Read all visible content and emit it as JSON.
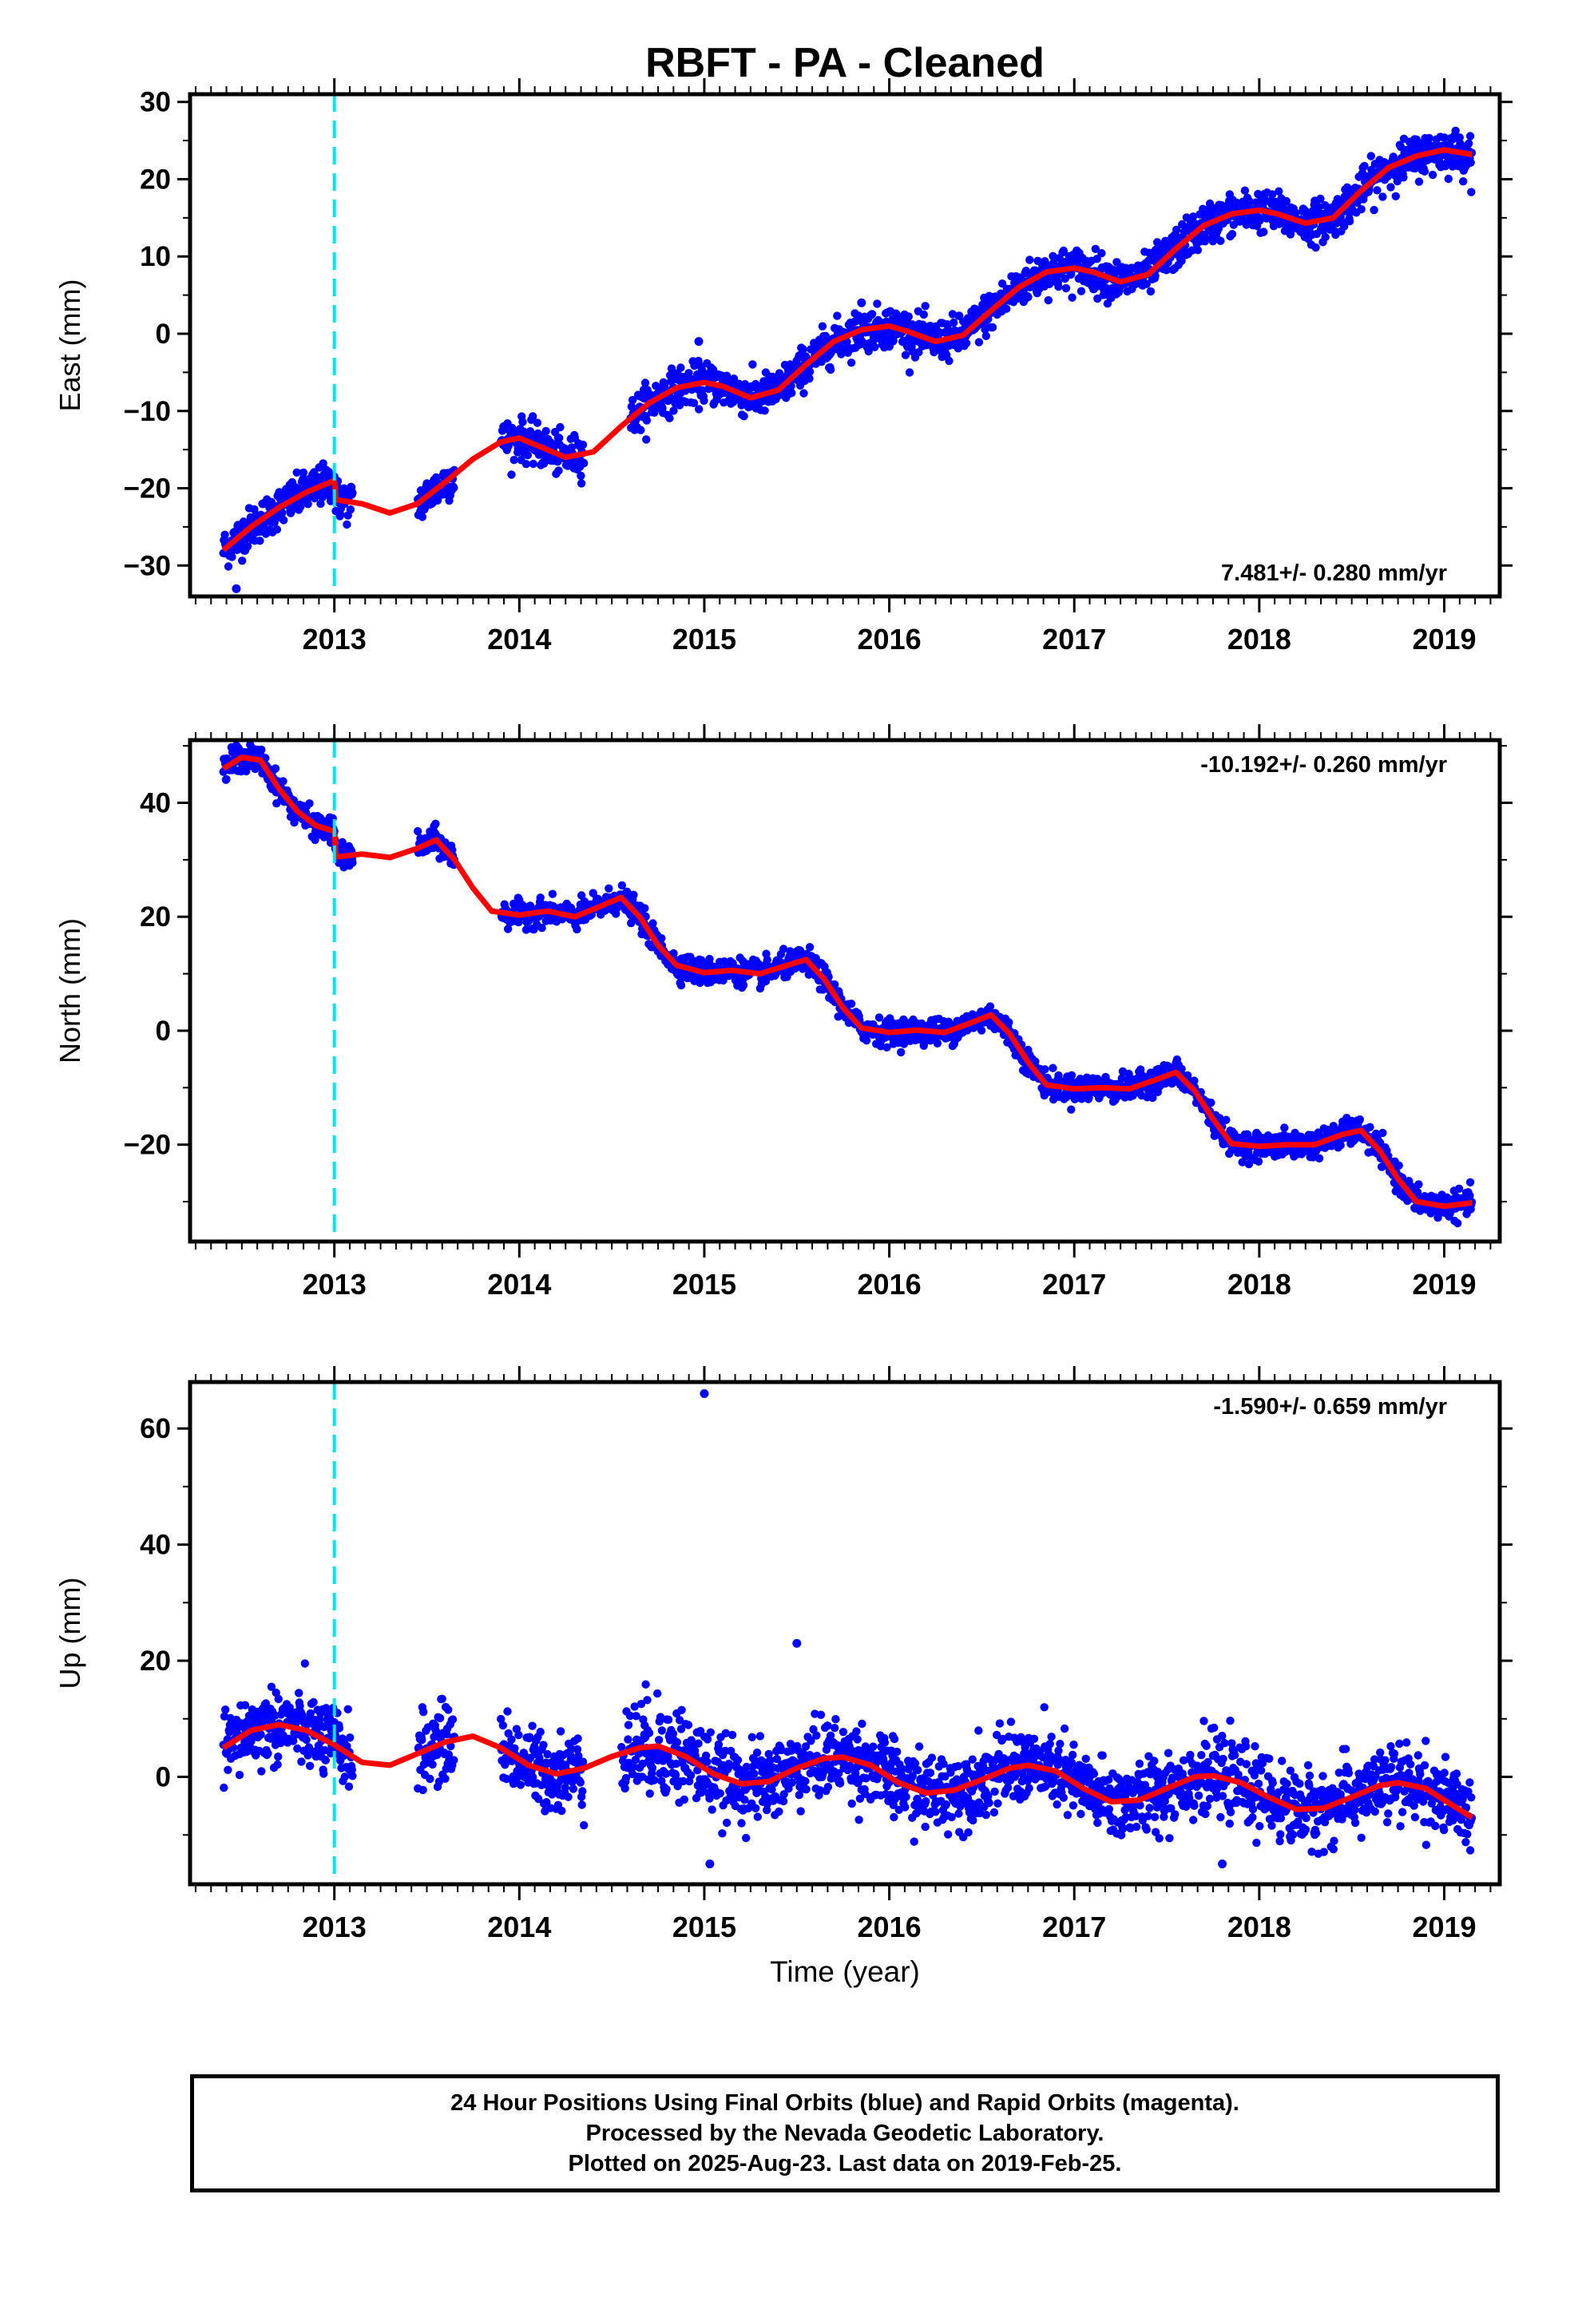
{
  "title": "RBFT  - PA - Cleaned",
  "colors": {
    "points": "#0000ff",
    "model_fit": "#ff0000",
    "event_line": "#00e5ee",
    "frame": "#000000"
  },
  "footer": {
    "line1": "24 Hour Positions Using Final Orbits (blue) and Rapid Orbits (magenta).",
    "line2": "Processed by the Nevada Geodetic Laboratory.",
    "line3": "Plotted on 2025-Aug-23. Last data on 2019-Feb-25."
  },
  "chart_data": [
    {
      "type": "scatter",
      "ylabel": "East (mm)",
      "xlabel": "",
      "xlim": [
        2012.22,
        2019.3
      ],
      "ylim": [
        -34,
        31
      ],
      "xticks": [
        2013,
        2014,
        2015,
        2016,
        2017,
        2018,
        2019
      ],
      "yticks": [
        -30,
        -20,
        -10,
        0,
        10,
        20,
        30
      ],
      "rate_label": "7.481+/- 0.280 mm/yr",
      "rate_position": "bottom-right",
      "event_line_x": 2013.0,
      "data_range": [
        2012.4,
        2019.15
      ],
      "gaps": [
        [
          2013.1,
          2013.45
        ],
        [
          2013.65,
          2013.9
        ],
        [
          2014.35,
          2014.6
        ]
      ],
      "outliers": [
        [
          2012.47,
          -33
        ],
        [
          2014.97,
          -1
        ],
        [
          2015.85,
          4
        ]
      ],
      "series": [
        {
          "name": "model",
          "x": [
            2012.4,
            2012.55,
            2012.7,
            2012.85,
            2013.0,
            2013.01,
            2013.15,
            2013.3,
            2013.45,
            2013.6,
            2013.75,
            2013.9,
            2014.0,
            2014.1,
            2014.25,
            2014.4,
            2014.55,
            2014.7,
            2014.85,
            2015.0,
            2015.1,
            2015.25,
            2015.4,
            2015.55,
            2015.7,
            2015.85,
            2016.0,
            2016.1,
            2016.25,
            2016.4,
            2016.55,
            2016.7,
            2016.85,
            2017.0,
            2017.1,
            2017.25,
            2017.4,
            2017.55,
            2017.7,
            2017.85,
            2018.0,
            2018.1,
            2018.25,
            2018.4,
            2018.55,
            2018.7,
            2018.85,
            2019.0,
            2019.15
          ],
          "y": [
            -28,
            -25,
            -22.5,
            -20.5,
            -19,
            -21.5,
            -22,
            -23.2,
            -22,
            -19.2,
            -16.2,
            -14,
            -13.5,
            -14.5,
            -16,
            -15.3,
            -12,
            -9,
            -7,
            -6.3,
            -6.8,
            -8.3,
            -7.3,
            -4,
            -1,
            0.5,
            1,
            0.3,
            -1,
            -0.2,
            3,
            6,
            8,
            8.5,
            8,
            6.7,
            7.7,
            11,
            14,
            15.5,
            16,
            15.5,
            14.3,
            15,
            18.5,
            21.5,
            23,
            23.8,
            23.2
          ]
        }
      ]
    },
    {
      "type": "scatter",
      "ylabel": "North (mm)",
      "xlabel": "",
      "xlim": [
        2012.22,
        2019.3
      ],
      "ylim": [
        -37,
        51
      ],
      "xticks": [
        2013,
        2014,
        2015,
        2016,
        2017,
        2018,
        2019
      ],
      "yticks": [
        -20,
        0,
        20,
        40
      ],
      "rate_label": "-10.192+/- 0.260 mm/yr",
      "rate_position": "top-right",
      "event_line_x": 2013.0,
      "data_range": [
        2012.4,
        2019.15
      ],
      "gaps": [
        [
          2013.1,
          2013.45
        ],
        [
          2013.65,
          2013.9
        ],
        [
          2014.7,
          2014.71
        ]
      ],
      "outliers": [
        [
          2012.47,
          50
        ]
      ],
      "series": [
        {
          "name": "model",
          "x": [
            2012.4,
            2012.5,
            2012.6,
            2012.7,
            2012.8,
            2012.9,
            2013.0,
            2013.01,
            2013.15,
            2013.3,
            2013.45,
            2013.55,
            2013.65,
            2013.75,
            2013.85,
            2014.0,
            2014.15,
            2014.3,
            2014.45,
            2014.55,
            2014.65,
            2014.75,
            2014.85,
            2015.0,
            2015.15,
            2015.3,
            2015.45,
            2015.55,
            2015.65,
            2015.75,
            2015.85,
            2016.0,
            2016.15,
            2016.3,
            2016.45,
            2016.55,
            2016.65,
            2016.75,
            2016.85,
            2017.0,
            2017.15,
            2017.3,
            2017.45,
            2017.55,
            2017.65,
            2017.75,
            2017.85,
            2018.0,
            2018.15,
            2018.3,
            2018.45,
            2018.55,
            2018.65,
            2018.75,
            2018.85,
            2019.0,
            2019.15
          ],
          "y": [
            46,
            48,
            47.5,
            42.5,
            38.5,
            36,
            35,
            30.5,
            31,
            30.4,
            32,
            33.5,
            30,
            25,
            21,
            20.3,
            21,
            20,
            22,
            23.4,
            20,
            15,
            11.5,
            10.2,
            10.6,
            10,
            11.5,
            12.5,
            9,
            4,
            0.5,
            -0.3,
            0.1,
            -0.3,
            1.5,
            2.8,
            -0.5,
            -5.5,
            -9.5,
            -10.2,
            -10,
            -10.2,
            -8.5,
            -7.3,
            -10.5,
            -15.5,
            -19.8,
            -20.3,
            -20,
            -20,
            -18.2,
            -17.5,
            -21,
            -26,
            -30,
            -30.8,
            -30.2
          ]
        }
      ]
    },
    {
      "type": "scatter",
      "ylabel": "Up (mm)",
      "xlabel": "Time (year)",
      "xlim": [
        2012.22,
        2019.3
      ],
      "ylim": [
        -18.5,
        68
      ],
      "xticks": [
        2013,
        2014,
        2015,
        2016,
        2017,
        2018,
        2019
      ],
      "yticks": [
        0,
        20,
        40,
        60
      ],
      "rate_label": "-1.590+/- 0.659 mm/yr",
      "rate_position": "top-right",
      "event_line_x": 2013.0,
      "data_range": [
        2012.4,
        2019.15
      ],
      "gaps": [
        [
          2013.1,
          2013.45
        ],
        [
          2013.65,
          2013.9
        ],
        [
          2014.35,
          2014.55
        ]
      ],
      "outliers": [
        [
          2015.0,
          66
        ],
        [
          2015.5,
          23
        ],
        [
          2017.8,
          -15
        ],
        [
          2015.03,
          -15
        ]
      ],
      "series": [
        {
          "name": "model",
          "x": [
            2012.4,
            2012.55,
            2012.7,
            2012.85,
            2013.0,
            2013.15,
            2013.3,
            2013.45,
            2013.6,
            2013.75,
            2013.9,
            2014.05,
            2014.2,
            2014.35,
            2014.5,
            2014.65,
            2014.75,
            2014.9,
            2015.05,
            2015.2,
            2015.35,
            2015.5,
            2015.65,
            2015.75,
            2015.9,
            2016.05,
            2016.2,
            2016.35,
            2016.5,
            2016.65,
            2016.75,
            2016.9,
            2017.05,
            2017.2,
            2017.35,
            2017.5,
            2017.65,
            2017.75,
            2017.9,
            2018.05,
            2018.2,
            2018.35,
            2018.5,
            2018.65,
            2018.75,
            2018.9,
            2019.05,
            2019.15
          ],
          "y": [
            5,
            8,
            9,
            8,
            5.5,
            2.5,
            2,
            4,
            6,
            7,
            5,
            2,
            0.5,
            1.5,
            3.5,
            5,
            5.3,
            3.5,
            0.5,
            -1.2,
            -0.8,
            1.5,
            3.2,
            3.4,
            2,
            -1,
            -2.8,
            -2.3,
            -0.5,
            1.5,
            2,
            1,
            -2,
            -4.3,
            -4,
            -2,
            0,
            0.2,
            -1,
            -3.5,
            -5.6,
            -5.4,
            -3.5,
            -1.5,
            -1,
            -2,
            -5,
            -7
          ]
        }
      ]
    }
  ]
}
